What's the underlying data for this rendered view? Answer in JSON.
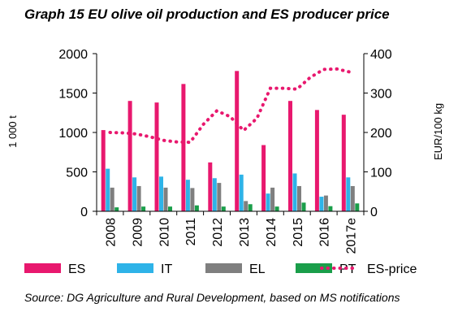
{
  "title": "Graph 15 EU olive oil production and ES producer price",
  "source": "Source: DG Agriculture and Rural Development, based on MS notifications",
  "chart_data": {
    "type": "bar",
    "categories": [
      "2008",
      "2009",
      "2010",
      "2011",
      "2012",
      "2013",
      "2014",
      "2015",
      "2016",
      "2017e"
    ],
    "ylabel": "1 000 t",
    "ylim": [
      0,
      2000
    ],
    "yticks": [
      0,
      500,
      1000,
      1500,
      2000
    ],
    "y2label": "EUR/100 kg",
    "y2lim": [
      0,
      400
    ],
    "y2ticks": [
      0,
      100,
      200,
      300,
      400
    ],
    "grid": false,
    "legend_position": "bottom",
    "series": [
      {
        "name": "ES",
        "type": "bar",
        "axis": "left",
        "color": "#e8186e",
        "values": [
          1030,
          1400,
          1380,
          1615,
          620,
          1780,
          840,
          1400,
          1285,
          1225
        ]
      },
      {
        "name": "IT",
        "type": "bar",
        "axis": "left",
        "color": "#2eb3e8",
        "values": [
          540,
          430,
          440,
          400,
          420,
          465,
          225,
          480,
          185,
          430
        ]
      },
      {
        "name": "EL",
        "type": "bar",
        "axis": "left",
        "color": "#7f7f7f",
        "values": [
          300,
          320,
          300,
          295,
          360,
          130,
          300,
          320,
          200,
          320
        ]
      },
      {
        "name": "PT",
        "type": "bar",
        "axis": "left",
        "color": "#1a9e4a",
        "values": [
          50,
          60,
          60,
          75,
          60,
          90,
          60,
          110,
          65,
          100
        ]
      },
      {
        "name": "ES-price",
        "type": "line",
        "axis": "right",
        "style": "dotted",
        "color": "#e8186e",
        "x": [
          2008.0,
          2008.5,
          2009.0,
          2009.5,
          2010.0,
          2010.5,
          2011.0,
          2011.5,
          2012.0,
          2012.5,
          2013.0,
          2013.5,
          2014.0,
          2014.5,
          2015.0,
          2015.5,
          2016.0,
          2016.5,
          2017.0
        ],
        "values": [
          200,
          199,
          196,
          189,
          180,
          176,
          175,
          221,
          255,
          240,
          205,
          236,
          312,
          312,
          310,
          340,
          360,
          361,
          353
        ]
      }
    ]
  }
}
